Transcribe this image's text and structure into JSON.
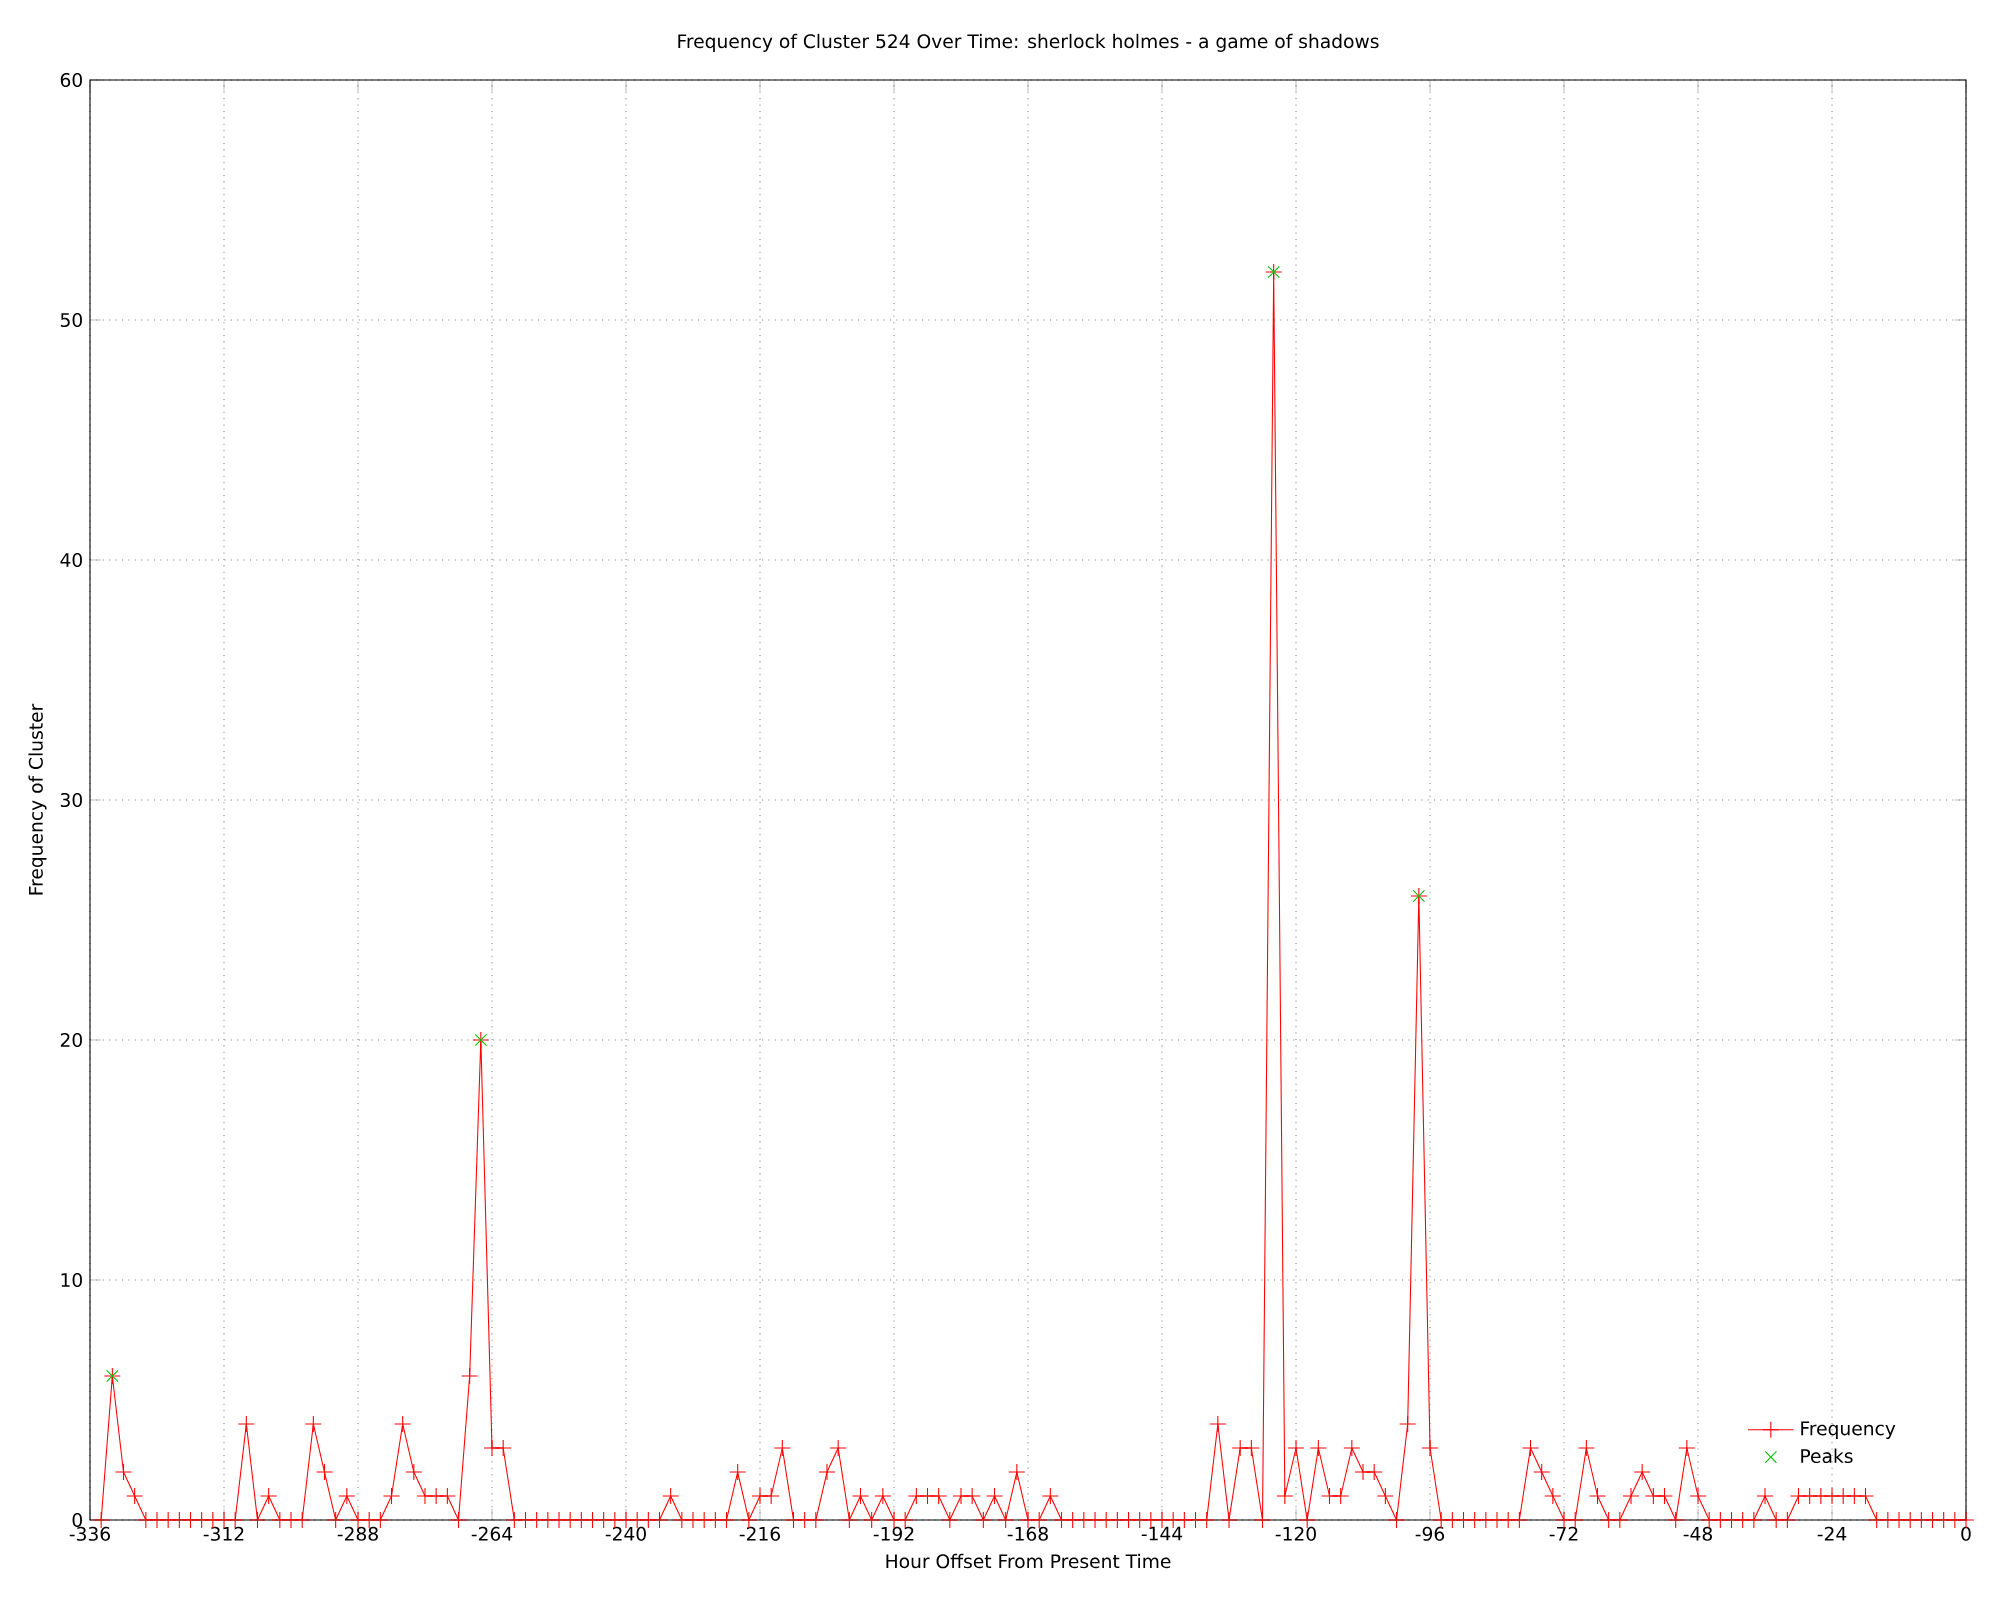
{
  "chart_data": {
    "type": "line",
    "title": "Frequency of Cluster 524 Over Time: sherlock holmes - a game of shadows",
    "xlabel": "Hour Offset From Present Time",
    "ylabel": "Frequency of Cluster",
    "xlim": [
      -336,
      0
    ],
    "xticks": [
      -336,
      -312,
      -288,
      -264,
      -240,
      -216,
      -192,
      -168,
      -144,
      -120,
      -96,
      -72,
      -48,
      -24,
      0
    ],
    "ylim": [
      0,
      60
    ],
    "yticks": [
      0,
      10,
      20,
      30,
      40,
      50,
      60
    ],
    "grid": true,
    "legend": "bottom right",
    "series": [
      {
        "name": "Frequency",
        "color": "#ff0000",
        "marker": "cross",
        "x": [
          -334,
          -332,
          -330,
          -328,
          -326,
          -324,
          -322,
          -320,
          -318,
          -316,
          -314,
          -312,
          -310,
          -308,
          -306,
          -304,
          -302,
          -300,
          -298,
          -296,
          -294,
          -292,
          -290,
          -288,
          -286,
          -284,
          -282,
          -280,
          -278,
          -276,
          -274,
          -272,
          -270,
          -268,
          -266,
          -264,
          -262,
          -260,
          -258,
          -256,
          -254,
          -252,
          -250,
          -248,
          -246,
          -244,
          -242,
          -240,
          -238,
          -236,
          -234,
          -232,
          -230,
          -228,
          -226,
          -224,
          -222,
          -220,
          -218,
          -216,
          -214,
          -212,
          -210,
          -208,
          -206,
          -204,
          -202,
          -200,
          -198,
          -196,
          -194,
          -192,
          -190,
          -188,
          -186,
          -184,
          -182,
          -180,
          -178,
          -176,
          -174,
          -172,
          -170,
          -168,
          -166,
          -164,
          -162,
          -160,
          -158,
          -156,
          -154,
          -152,
          -150,
          -148,
          -146,
          -144,
          -142,
          -140,
          -138,
          -136,
          -134,
          -132,
          -130,
          -128,
          -126,
          -124,
          -122,
          -120,
          -118,
          -116,
          -114,
          -112,
          -110,
          -108,
          -106,
          -104,
          -102,
          -100,
          -98,
          -96,
          -94,
          -92,
          -90,
          -88,
          -86,
          -84,
          -82,
          -80,
          -78,
          -76,
          -74,
          -72,
          -70,
          -68,
          -66,
          -64,
          -62,
          -60,
          -58,
          -56,
          -54,
          -52,
          -50,
          -48,
          -46,
          -44,
          -42,
          -40,
          -38,
          -36,
          -34,
          -32,
          -30,
          -28,
          -26,
          -24,
          -22,
          -20,
          -18,
          -16,
          -14,
          -12,
          -10,
          -8,
          -6,
          -4,
          -2,
          0
        ],
        "values": [
          0,
          6,
          2,
          1,
          0,
          0,
          0,
          0,
          0,
          0,
          0,
          0,
          0,
          4,
          0,
          1,
          0,
          0,
          0,
          4,
          2,
          0,
          1,
          0,
          0,
          0,
          1,
          4,
          2,
          1,
          1,
          1,
          0,
          6,
          20,
          3,
          3,
          0,
          0,
          0,
          0,
          0,
          0,
          0,
          0,
          0,
          0,
          0,
          0,
          0,
          0,
          1,
          0,
          0,
          0,
          0,
          0,
          2,
          0,
          1,
          1,
          3,
          0,
          0,
          0,
          2,
          3,
          0,
          1,
          0,
          1,
          0,
          0,
          1,
          1,
          1,
          0,
          1,
          1,
          0,
          1,
          0,
          2,
          0,
          0,
          1,
          0,
          0,
          0,
          0,
          0,
          0,
          0,
          0,
          0,
          0,
          0,
          0,
          0,
          0,
          4,
          0,
          3,
          3,
          0,
          52,
          1,
          3,
          0,
          3,
          1,
          1,
          3,
          2,
          2,
          1,
          0,
          4,
          26,
          3,
          0,
          0,
          0,
          0,
          0,
          0,
          0,
          0,
          3,
          2,
          1,
          0,
          0,
          3,
          1,
          0,
          0,
          1,
          2,
          1,
          1,
          0,
          3,
          1,
          0,
          0,
          0,
          0,
          0,
          1,
          0,
          0,
          1,
          1,
          1,
          1,
          1,
          1,
          1,
          0,
          0,
          0,
          0,
          0,
          0,
          0,
          0,
          0
        ]
      },
      {
        "name": "Peaks",
        "type": "scatter",
        "color": "#00c000",
        "marker": "cross",
        "x": [
          -332,
          -266,
          -124,
          -98
        ],
        "values": [
          6,
          20,
          52,
          26
        ]
      }
    ]
  }
}
